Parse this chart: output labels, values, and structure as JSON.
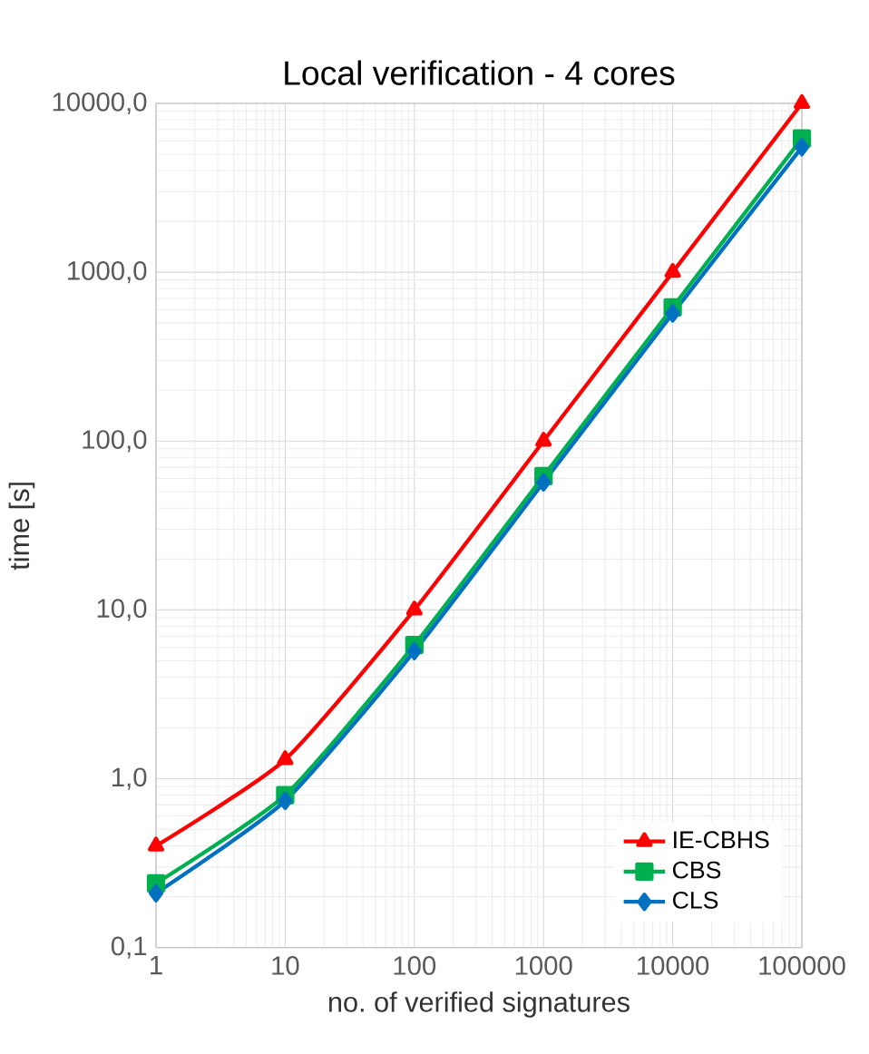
{
  "chart_data": {
    "type": "line",
    "title": "Local verification - 4 cores",
    "xlabel": "no. of verified signatures",
    "ylabel": "time [s]",
    "x": [
      1,
      10,
      100,
      1000,
      10000,
      100000
    ],
    "series": [
      {
        "name": "IE-CBHS",
        "color": "#ff0000",
        "marker": "triangle",
        "values": [
          0.4,
          1.3,
          10,
          100,
          1000,
          10000
        ]
      },
      {
        "name": "CBS",
        "color": "#00b050",
        "marker": "square",
        "values": [
          0.24,
          0.8,
          6.2,
          62,
          620,
          6200
        ]
      },
      {
        "name": "CLS",
        "color": "#0070c0",
        "marker": "diamond",
        "values": [
          0.21,
          0.74,
          5.7,
          57,
          570,
          5500
        ]
      }
    ],
    "log": "xy",
    "xlim": [
      1,
      100000
    ],
    "ylim": [
      0.1,
      10000
    ],
    "xticks": [
      1,
      10,
      100,
      1000,
      10000,
      100000
    ],
    "yticks": [
      {
        "value": 0.1,
        "label": "0,1"
      },
      {
        "value": 1,
        "label": "1,0"
      },
      {
        "value": 10,
        "label": "10,0"
      },
      {
        "value": 100,
        "label": "100,0"
      },
      {
        "value": 1000,
        "label": "1000,0"
      },
      {
        "value": 10000,
        "label": "10000,0"
      }
    ],
    "grid": true,
    "legend": "bottom right"
  }
}
